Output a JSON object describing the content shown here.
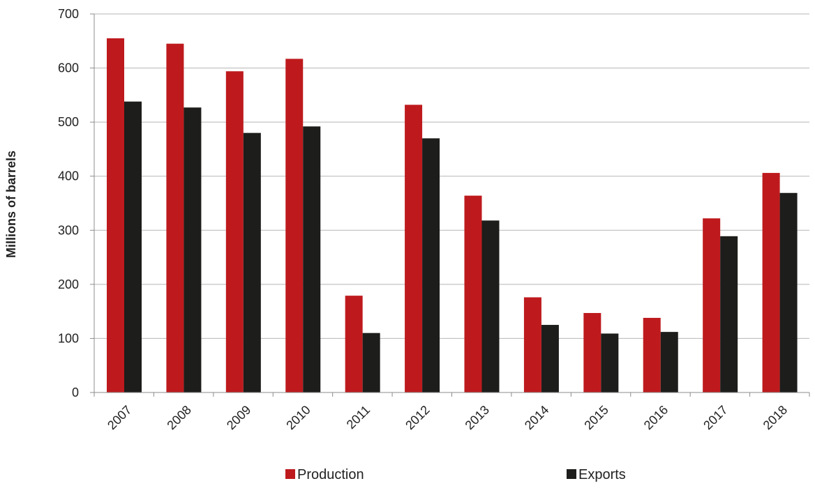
{
  "chart_data": {
    "type": "bar",
    "title": "",
    "xlabel": "",
    "ylabel": "Millions of barrels",
    "ylim": [
      0,
      700
    ],
    "yticks": [
      0,
      100,
      200,
      300,
      400,
      500,
      600,
      700
    ],
    "grid": true,
    "legend_placement": "bottom",
    "categories": [
      "2007",
      "2008",
      "2009",
      "2010",
      "2011",
      "2012",
      "2013",
      "2014",
      "2015",
      "2016",
      "2017",
      "2018"
    ],
    "series": [
      {
        "name": "Production",
        "color": "#be1a1d",
        "values": [
          655,
          645,
          594,
          617,
          179,
          532,
          364,
          176,
          147,
          138,
          322,
          406
        ]
      },
      {
        "name": "Exports",
        "color": "#1d1d1b",
        "values": [
          538,
          527,
          480,
          492,
          110,
          470,
          318,
          125,
          109,
          112,
          289,
          369
        ]
      }
    ]
  }
}
